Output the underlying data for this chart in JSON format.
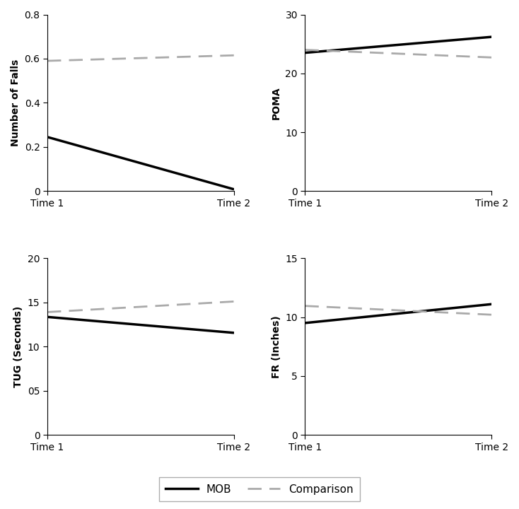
{
  "subplots": [
    {
      "ylabel": "Number of Falls",
      "yticks": [
        0,
        0.2,
        0.4,
        0.6,
        0.8
      ],
      "ytick_labels": [
        "0",
        "0.2",
        "0.4",
        "0.6",
        "0.8"
      ],
      "ylim": [
        0,
        0.8
      ],
      "mob": [
        0.245,
        0.008
      ],
      "comparison": [
        0.59,
        0.615
      ]
    },
    {
      "ylabel": "POMA",
      "yticks": [
        0,
        10,
        20,
        30
      ],
      "ytick_labels": [
        "0",
        "10",
        "20",
        "30"
      ],
      "ylim": [
        0,
        30
      ],
      "mob": [
        23.5,
        26.2
      ],
      "comparison": [
        24.0,
        22.7
      ]
    },
    {
      "ylabel": "TUG (Seconds)",
      "yticks": [
        0,
        5,
        10,
        15,
        20
      ],
      "ytick_labels": [
        "0",
        "05",
        "10",
        "15",
        "20"
      ],
      "ylim": [
        0,
        20
      ],
      "mob": [
        13.35,
        11.55
      ],
      "comparison": [
        13.9,
        15.1
      ]
    },
    {
      "ylabel": "FR (Inches)",
      "yticks": [
        0,
        5,
        10,
        15
      ],
      "ytick_labels": [
        "0",
        "5",
        "10",
        "15"
      ],
      "ylim": [
        0,
        15
      ],
      "mob": [
        9.5,
        11.1
      ],
      "comparison": [
        10.95,
        10.2
      ]
    }
  ],
  "xtick_labels": [
    "Time 1",
    "Time 2"
  ],
  "mob_color": "#000000",
  "comparison_color": "#aaaaaa",
  "mob_linewidth": 2.5,
  "comparison_linewidth": 2.0,
  "legend_mob_label": "MOB",
  "legend_comparison_label": "Comparison",
  "background_color": "#ffffff"
}
